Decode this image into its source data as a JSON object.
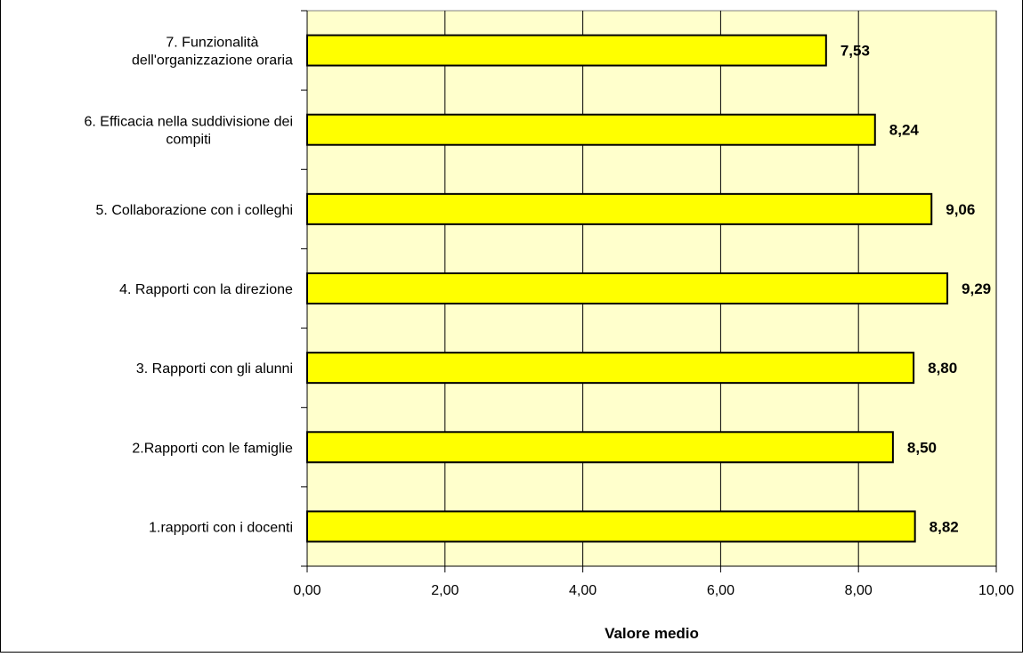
{
  "chart_data": {
    "type": "bar",
    "orientation": "horizontal",
    "title": "",
    "xlabel": "Valore medio",
    "ylabel": "",
    "categories": [
      [
        "1.rapporti con i docenti"
      ],
      [
        "2.Rapporti con le famiglie"
      ],
      [
        "3. Rapporti con gli alunni"
      ],
      [
        "4. Rapporti con la direzione"
      ],
      [
        "5. Collaborazione con i colleghi"
      ],
      [
        "6. Efficacia nella suddivisione dei",
        "compiti"
      ],
      [
        "7. Funzionalità",
        "dell'organizzazione oraria"
      ]
    ],
    "values": [
      8.82,
      8.5,
      8.8,
      9.29,
      9.06,
      8.24,
      7.53
    ],
    "value_labels": [
      "8,82",
      "8,50",
      "8,80",
      "9,29",
      "9,06",
      "8,24",
      "7,53"
    ],
    "xlim": [
      0,
      10
    ],
    "xticks": [
      "0,00",
      "2,00",
      "4,00",
      "6,00",
      "8,00",
      "10,00"
    ],
    "grid": true,
    "legend": "none",
    "colors": {
      "plot_background": "#FFFFCC",
      "bar_fill": "#FFFF00",
      "bar_stroke": "#000000",
      "gridline": "#000000"
    }
  }
}
